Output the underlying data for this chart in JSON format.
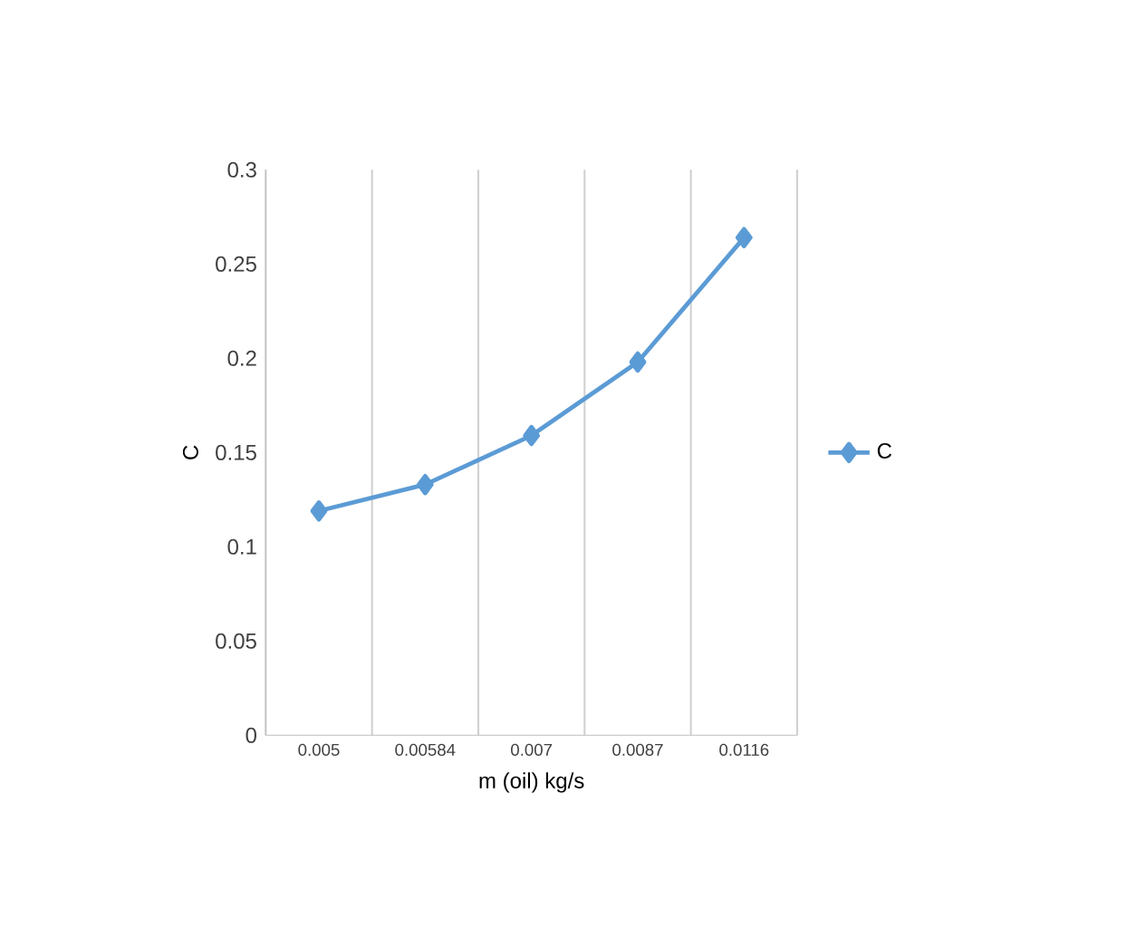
{
  "chart_data": {
    "type": "line",
    "xlabel": "m (oil) kg/s",
    "ylabel": "C",
    "categories": [
      "0.005",
      "0.00584",
      "0.007",
      "0.0087",
      "0.0116"
    ],
    "series": [
      {
        "name": "C",
        "color": "#5b9bd5",
        "values": [
          0.119,
          0.133,
          0.159,
          0.198,
          0.264
        ]
      }
    ],
    "ylim": [
      0,
      0.3
    ],
    "yticks": [
      0,
      0.05,
      0.1,
      0.15,
      0.2,
      0.25,
      0.3
    ],
    "grid": "x",
    "legend": "right",
    "marker": "diamond",
    "line_style": "solid"
  }
}
